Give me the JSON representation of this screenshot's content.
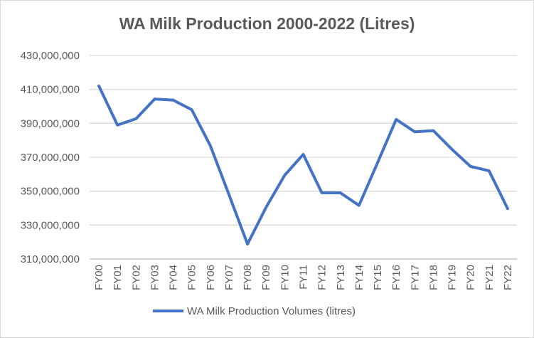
{
  "chart_data": {
    "type": "line",
    "title": "WA Milk Production 2000-2022 (Litres)",
    "xlabel": "",
    "ylabel": "",
    "categories": [
      "FY00",
      "FY01",
      "FY02",
      "FY03",
      "FY04",
      "FY05",
      "FY06",
      "FY07",
      "FY08",
      "FY09",
      "FY10",
      "FY11",
      "FY12",
      "FY13",
      "FY14",
      "FY15",
      "FY16",
      "FY17",
      "FY18",
      "FY19",
      "FY20",
      "FY21",
      "FY22"
    ],
    "series": [
      {
        "name": "WA Milk Production Volumes (litres)",
        "color": "#4472c4",
        "values": [
          412000000,
          389000000,
          392700000,
          404300000,
          403700000,
          398000000,
          376800000,
          348000000,
          318800000,
          340500000,
          359400000,
          371700000,
          349000000,
          349000000,
          341600000,
          366800000,
          392300000,
          385000000,
          385700000,
          374700000,
          364600000,
          362000000,
          339700000
        ]
      }
    ],
    "ylim": [
      310000000,
      430000000
    ],
    "yticks": [
      "310,000,000",
      "330,000,000",
      "350,000,000",
      "370,000,000",
      "390,000,000",
      "410,000,000",
      "430,000,000"
    ],
    "ytick_values": [
      310000000,
      330000000,
      350000000,
      370000000,
      390000000,
      410000000,
      430000000
    ],
    "grid": true,
    "legend": "bottom"
  }
}
